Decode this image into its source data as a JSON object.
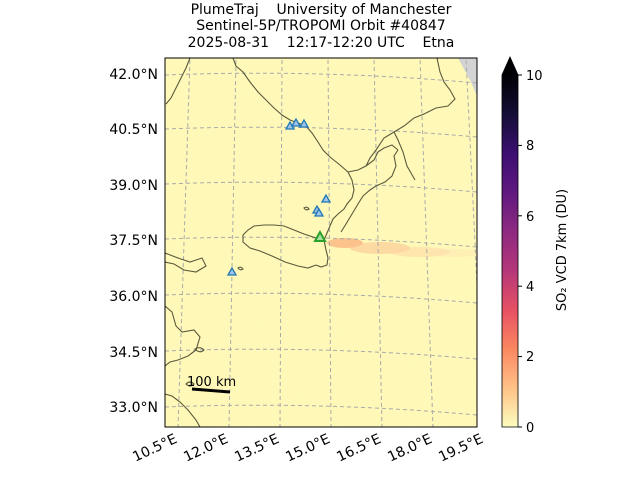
{
  "title": {
    "line1": "PlumeTraj    University of Manchester",
    "line2": "Sentinel-5P/TROPOMI Orbit #40847",
    "line3": "2025-08-31    12:17-12:20 UTC    Etna"
  },
  "map": {
    "lat_labels": [
      "42.0°N",
      "40.5°N",
      "39.0°N",
      "37.5°N",
      "36.0°N",
      "34.5°N",
      "33.0°N"
    ],
    "lon_labels": [
      "10.5°E",
      "12.0°E",
      "13.5°E",
      "15.0°E",
      "16.5°E",
      "18.0°E",
      "19.5°E"
    ],
    "scale_bar_label": "100 km",
    "colors": {
      "background": "#fff9b8",
      "coastline": "#5a5a3c",
      "grid": "#aaaaaa",
      "volcano_target": "#2ca02c",
      "volcano_other": "#1f77b4",
      "no_data": "#d3d3d3"
    },
    "volcanoes": [
      {
        "name": "Etna",
        "type": "target"
      },
      {
        "type": "other"
      },
      {
        "type": "other"
      },
      {
        "type": "other"
      },
      {
        "type": "other"
      },
      {
        "type": "other"
      },
      {
        "type": "other"
      },
      {
        "type": "other"
      }
    ]
  },
  "colorbar": {
    "label": "SO₂ VCD 7km (DU)",
    "ticks": [
      "0",
      "2",
      "4",
      "6",
      "8",
      "10"
    ],
    "min": 0,
    "max": 10,
    "extend": "max",
    "colormap": [
      "#fcfdbf",
      "#fec287",
      "#fb8861",
      "#e75263",
      "#b73779",
      "#8c2981",
      "#5f187f",
      "#3b0f70",
      "#140e36",
      "#000004"
    ]
  }
}
